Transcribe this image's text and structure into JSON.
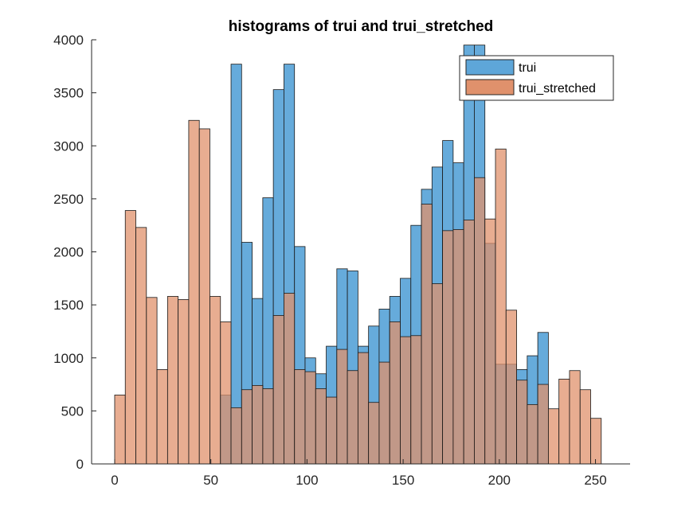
{
  "chart_data": {
    "type": "bar",
    "title": "histograms of trui and trui_stretched",
    "xlabel": "",
    "ylabel": "",
    "xlim": [
      -12,
      268
    ],
    "ylim": [
      0,
      4000
    ],
    "xticks": [
      0,
      50,
      100,
      150,
      200,
      250
    ],
    "yticks": [
      0,
      500,
      1000,
      1500,
      2000,
      2500,
      3000,
      3500,
      4000
    ],
    "grid": false,
    "legend_position": "top-right",
    "bin_width": 5.5,
    "series": [
      {
        "name": "trui",
        "color": "#5ea6d9",
        "bin_starts": [
          55,
          60.5,
          66,
          71.5,
          77,
          82.5,
          88,
          93.5,
          99,
          104.5,
          110,
          115.5,
          121,
          126.5,
          132,
          137.5,
          143,
          148.5,
          154,
          159.5,
          165,
          170.5,
          176,
          181.5,
          187,
          192.5,
          198,
          203.5,
          209,
          214.5,
          220,
          225.5
        ],
        "values": [
          650,
          3770,
          2090,
          1560,
          2510,
          3530,
          3770,
          2050,
          1000,
          850,
          1110,
          1840,
          1820,
          1110,
          1300,
          1460,
          1580,
          1750,
          2250,
          2590,
          2800,
          3050,
          2840,
          3950,
          3950,
          2080,
          940,
          940,
          890,
          1020,
          1240,
          0
        ]
      },
      {
        "name": "trui_stretched",
        "color": "#e0916c",
        "bin_starts": [
          0,
          5.5,
          11,
          16.5,
          22,
          27.5,
          33,
          38.5,
          44,
          49.5,
          55,
          60.5,
          66,
          71.5,
          77,
          82.5,
          88,
          93.5,
          99,
          104.5,
          110,
          115.5,
          121,
          126.5,
          132,
          137.5,
          143,
          148.5,
          154,
          159.5,
          165,
          170.5,
          176,
          181.5,
          187,
          192.5,
          198,
          203.5,
          209,
          214.5,
          220,
          225.5,
          231,
          236.5,
          242,
          247.5
        ],
        "values": [
          650,
          2390,
          2230,
          1570,
          890,
          1580,
          1550,
          3240,
          3160,
          1580,
          1340,
          530,
          700,
          740,
          710,
          1400,
          1610,
          890,
          870,
          710,
          630,
          1080,
          880,
          1050,
          580,
          960,
          1340,
          1200,
          1210,
          2450,
          1700,
          2200,
          2210,
          2300,
          2700,
          2310,
          2970,
          1450,
          790,
          560,
          750,
          520,
          800,
          880,
          700,
          430
        ]
      }
    ],
    "extra_bins": {
      "trui_stretched_tail": {
        "bin_starts": [
          253
        ],
        "values": [
          0
        ]
      }
    }
  },
  "legend": {
    "items": [
      {
        "label": "trui",
        "color": "#5ea6d9"
      },
      {
        "label": "trui_stretched",
        "color": "#e0916c"
      }
    ]
  }
}
